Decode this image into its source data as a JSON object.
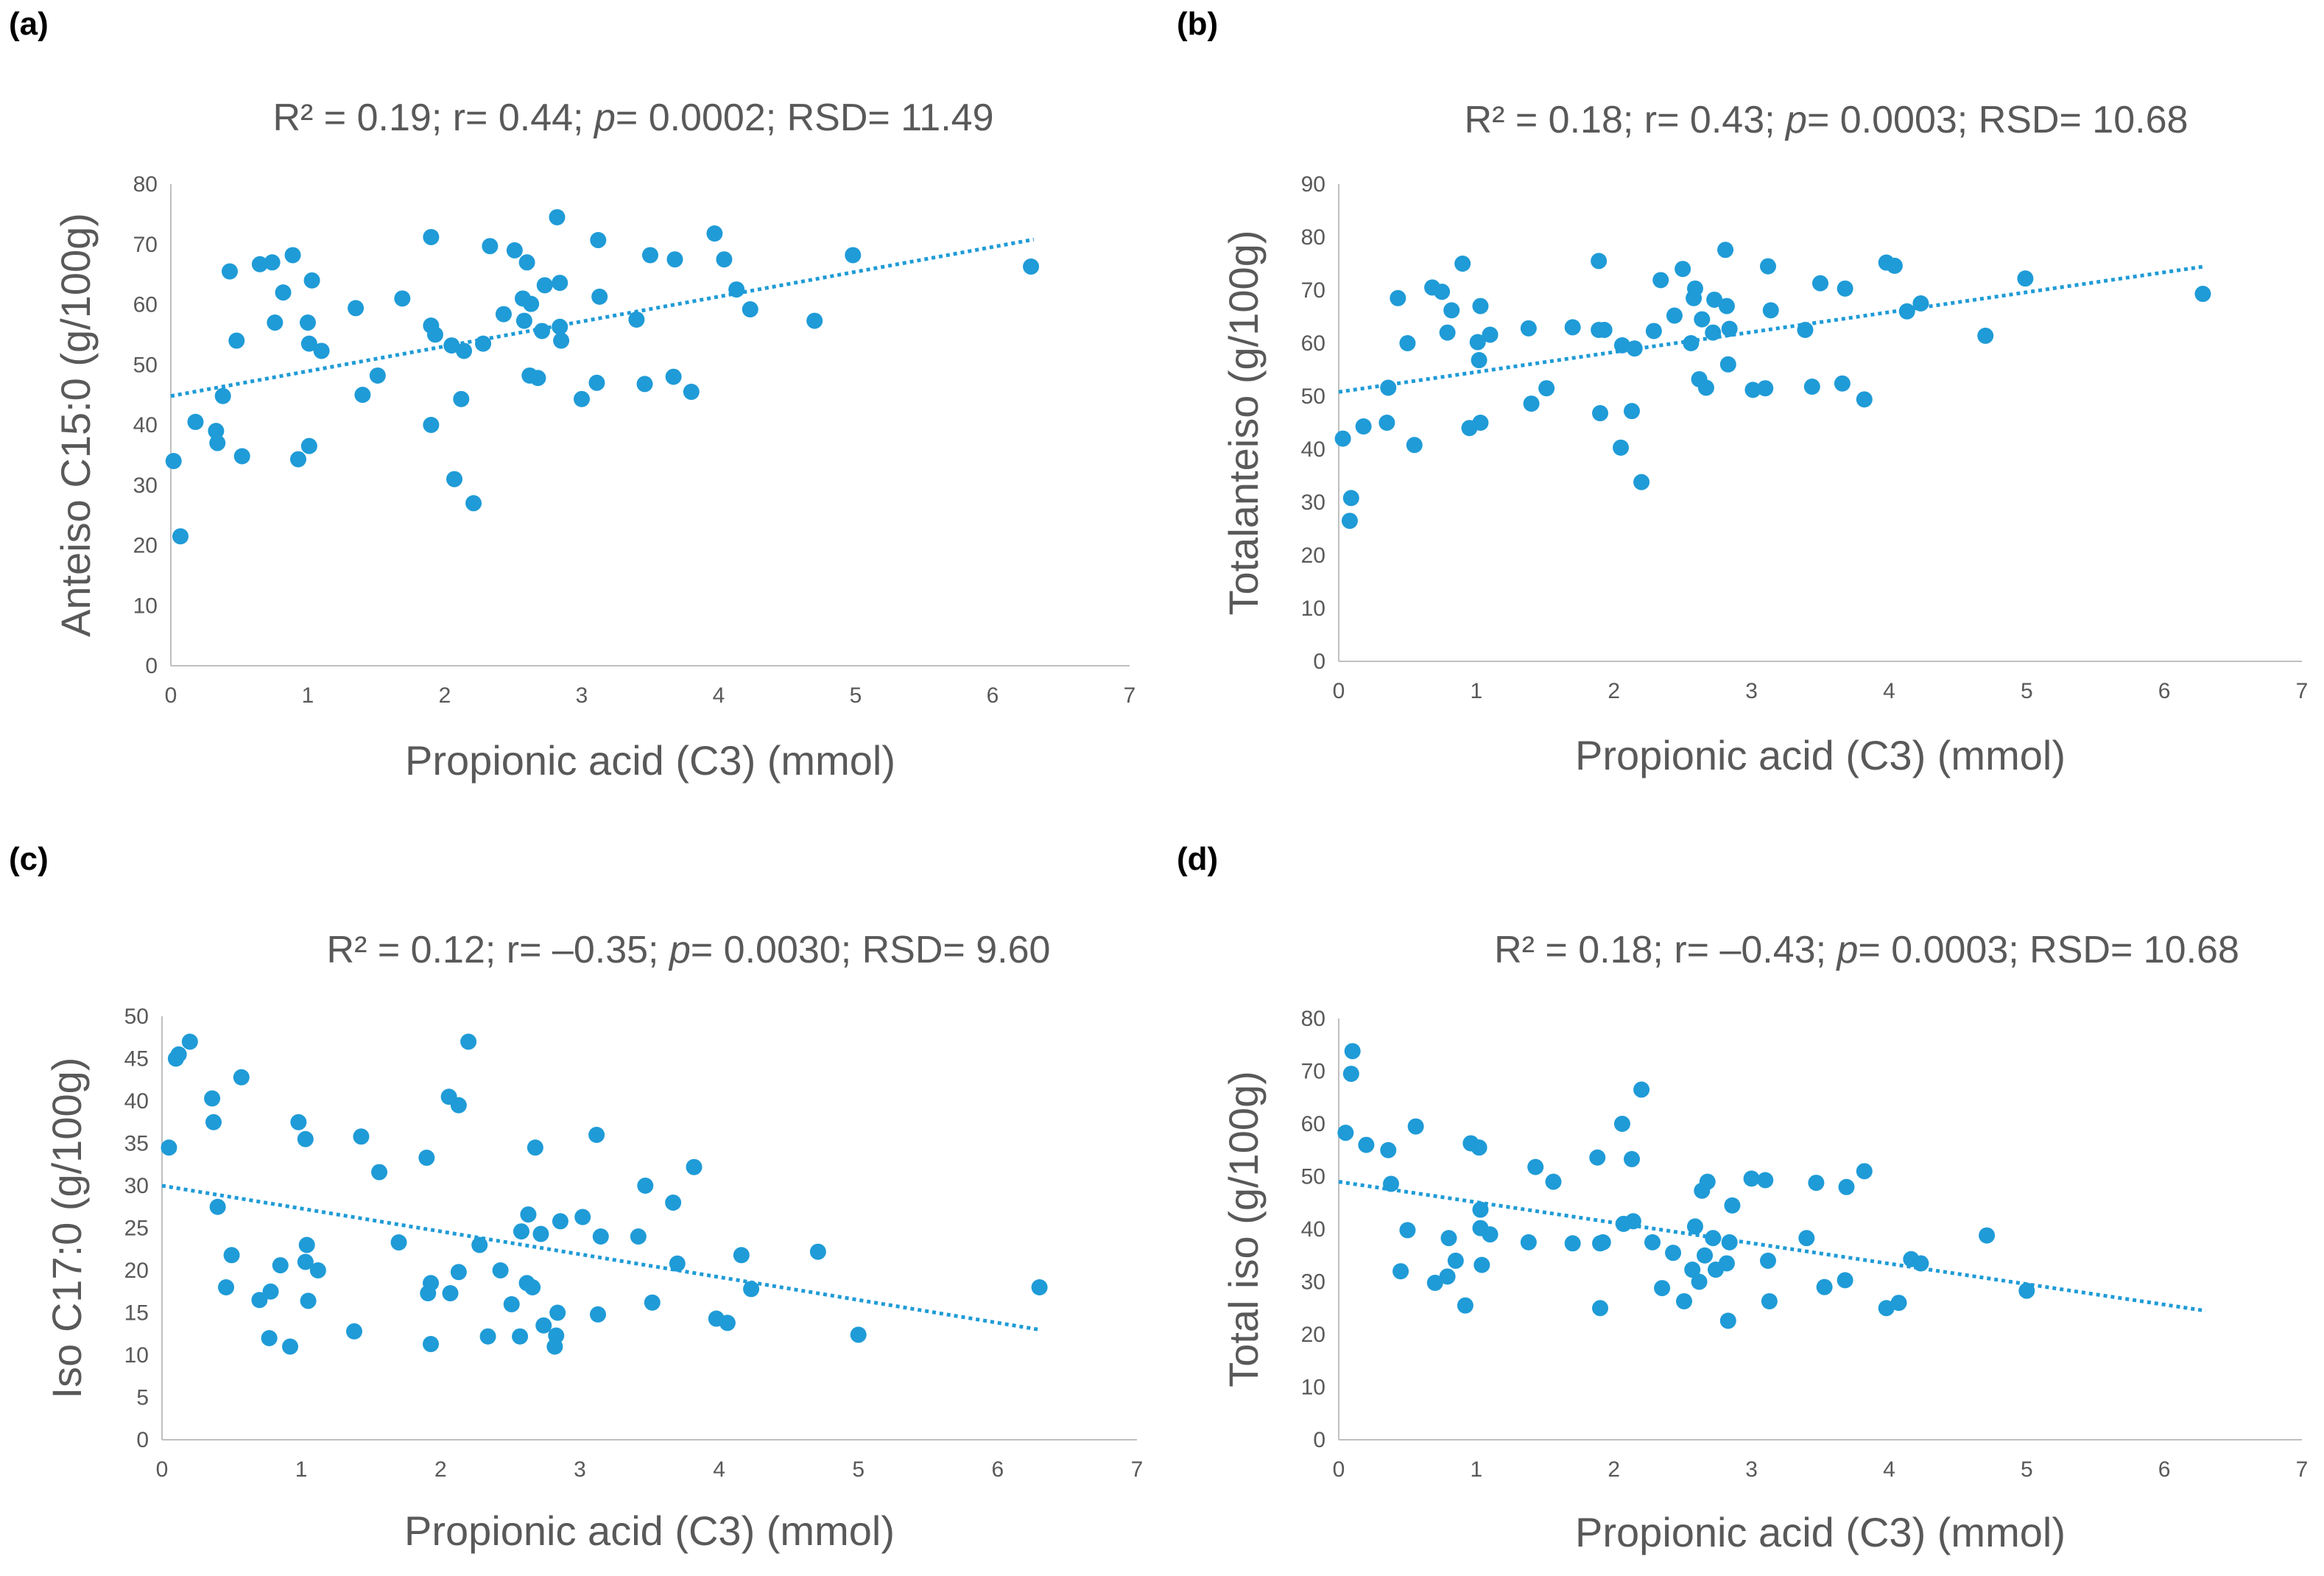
{
  "chart_data": [
    {
      "panel": "(a)",
      "type": "scatter",
      "title": {
        "r2": "R² = 0.19; r= 0.44; ",
        "p_label": "p",
        "rest": "= 0.0002; RSD= 11.49"
      },
      "xlabel": "Propionic acid (C3) (mmol)",
      "ylabel": "Anteiso C15:0 (g/100g)",
      "xlim": [
        0,
        7
      ],
      "ylim": [
        0,
        80
      ],
      "xticks": [
        0,
        1,
        2,
        3,
        4,
        5,
        6,
        7
      ],
      "yticks": [
        0,
        10,
        20,
        30,
        40,
        50,
        60,
        70,
        80
      ],
      "trend": {
        "x": [
          0,
          6.3
        ],
        "y": [
          44.8,
          70.8
        ]
      },
      "points": [
        [
          0.02,
          34
        ],
        [
          0.07,
          21.5
        ],
        [
          0.18,
          40.5
        ],
        [
          0.33,
          39
        ],
        [
          0.34,
          37
        ],
        [
          0.38,
          44.8
        ],
        [
          0.43,
          65.5
        ],
        [
          0.48,
          54
        ],
        [
          0.52,
          34.8
        ],
        [
          0.65,
          66.7
        ],
        [
          0.74,
          67
        ],
        [
          0.76,
          57
        ],
        [
          0.82,
          62
        ],
        [
          0.89,
          68.2
        ],
        [
          0.93,
          34.3
        ],
        [
          1.0,
          57
        ],
        [
          1.01,
          53.5
        ],
        [
          1.01,
          36.5
        ],
        [
          1.03,
          64
        ],
        [
          1.1,
          52.3
        ],
        [
          1.35,
          59.4
        ],
        [
          1.4,
          45
        ],
        [
          1.51,
          48.2
        ],
        [
          1.69,
          61
        ],
        [
          1.9,
          71.2
        ],
        [
          1.9,
          56.5
        ],
        [
          1.9,
          40
        ],
        [
          1.93,
          55
        ],
        [
          2.05,
          53.2
        ],
        [
          2.07,
          31
        ],
        [
          2.12,
          44.3
        ],
        [
          2.14,
          52.3
        ],
        [
          2.21,
          27
        ],
        [
          2.28,
          53.5
        ],
        [
          2.33,
          69.7
        ],
        [
          2.43,
          58.4
        ],
        [
          2.51,
          69
        ],
        [
          2.57,
          61
        ],
        [
          2.58,
          57.3
        ],
        [
          2.6,
          67
        ],
        [
          2.62,
          48.2
        ],
        [
          2.63,
          60.1
        ],
        [
          2.68,
          47.8
        ],
        [
          2.71,
          55.6
        ],
        [
          2.73,
          63.2
        ],
        [
          2.82,
          74.5
        ],
        [
          2.84,
          63.6
        ],
        [
          2.84,
          56.3
        ],
        [
          2.85,
          54
        ],
        [
          3.0,
          44.3
        ],
        [
          3.11,
          47
        ],
        [
          3.12,
          70.7
        ],
        [
          3.13,
          61.3
        ],
        [
          3.4,
          57.5
        ],
        [
          3.46,
          46.8
        ],
        [
          3.5,
          68.2
        ],
        [
          3.67,
          48
        ],
        [
          3.68,
          67.5
        ],
        [
          3.8,
          45.5
        ],
        [
          3.97,
          71.8
        ],
        [
          4.04,
          67.5
        ],
        [
          4.13,
          62.5
        ],
        [
          4.23,
          59.2
        ],
        [
          4.7,
          57.3
        ],
        [
          4.98,
          68.2
        ],
        [
          6.28,
          66.3
        ]
      ]
    },
    {
      "panel": "(b)",
      "type": "scatter",
      "title": {
        "r2": "R² = 0.18; r= 0.43; ",
        "p_label": "p",
        "rest": "= 0.0003; RSD= 10.68"
      },
      "xlabel": "Propionic acid (C3) (mmol)",
      "ylabel": "Totalanteiso (g/100g)",
      "xlim": [
        0,
        7
      ],
      "ylim": [
        0,
        90
      ],
      "xticks": [
        0,
        1,
        2,
        3,
        4,
        5,
        6,
        7
      ],
      "yticks": [
        0,
        10,
        20,
        30,
        40,
        50,
        60,
        70,
        80,
        90
      ],
      "trend": {
        "x": [
          0,
          6.3
        ],
        "y": [
          50.8,
          74.5
        ]
      },
      "points": [
        [
          0.03,
          42
        ],
        [
          0.08,
          26.5
        ],
        [
          0.09,
          30.8
        ],
        [
          0.18,
          44.3
        ],
        [
          0.35,
          45
        ],
        [
          0.36,
          51.6
        ],
        [
          0.43,
          68.5
        ],
        [
          0.5,
          60
        ],
        [
          0.55,
          40.8
        ],
        [
          0.68,
          70.5
        ],
        [
          0.75,
          69.7
        ],
        [
          0.79,
          62
        ],
        [
          0.82,
          66.2
        ],
        [
          0.9,
          75
        ],
        [
          0.95,
          44
        ],
        [
          1.01,
          60.2
        ],
        [
          1.02,
          56.8
        ],
        [
          1.03,
          45
        ],
        [
          1.03,
          67
        ],
        [
          1.1,
          61.6
        ],
        [
          1.38,
          62.8
        ],
        [
          1.4,
          48.6
        ],
        [
          1.51,
          51.5
        ],
        [
          1.7,
          63
        ],
        [
          1.89,
          75.5
        ],
        [
          1.89,
          62.5
        ],
        [
          1.9,
          46.8
        ],
        [
          1.93,
          62.5
        ],
        [
          2.05,
          40.3
        ],
        [
          2.06,
          59.6
        ],
        [
          2.13,
          47.2
        ],
        [
          2.15,
          59
        ],
        [
          2.2,
          33.8
        ],
        [
          2.29,
          62.3
        ],
        [
          2.34,
          71.9
        ],
        [
          2.44,
          65.2
        ],
        [
          2.5,
          74
        ],
        [
          2.56,
          60
        ],
        [
          2.58,
          68.5
        ],
        [
          2.59,
          70.3
        ],
        [
          2.62,
          53.2
        ],
        [
          2.64,
          64.5
        ],
        [
          2.67,
          51.6
        ],
        [
          2.72,
          62
        ],
        [
          2.73,
          68.2
        ],
        [
          2.81,
          77.6
        ],
        [
          2.82,
          67
        ],
        [
          2.83,
          56
        ],
        [
          2.84,
          62.7
        ],
        [
          3.01,
          51.2
        ],
        [
          3.1,
          51.5
        ],
        [
          3.12,
          74.5
        ],
        [
          3.14,
          66.2
        ],
        [
          3.39,
          62.5
        ],
        [
          3.44,
          51.8
        ],
        [
          3.5,
          71.3
        ],
        [
          3.66,
          52.4
        ],
        [
          3.68,
          70.3
        ],
        [
          3.82,
          49.4
        ],
        [
          3.98,
          75.2
        ],
        [
          4.04,
          74.6
        ],
        [
          4.13,
          66
        ],
        [
          4.23,
          67.5
        ],
        [
          4.7,
          61.4
        ],
        [
          4.99,
          72.2
        ],
        [
          6.28,
          69.3
        ]
      ]
    },
    {
      "panel": "(c)",
      "type": "scatter",
      "title": {
        "r2": "R² = 0.12; r= –0.35; ",
        "p_label": "p",
        "rest": "= 0.0030; RSD= 9.60"
      },
      "xlabel": "Propionic acid (C3) (mmol)",
      "ylabel": "Iso C17:0 (g/100g)",
      "xlim": [
        0,
        7
      ],
      "ylim": [
        0,
        50
      ],
      "xticks": [
        0,
        1,
        2,
        3,
        4,
        5,
        6,
        7
      ],
      "yticks": [
        0,
        5,
        10,
        15,
        20,
        25,
        30,
        35,
        40,
        45,
        50
      ],
      "trend": {
        "x": [
          0,
          6.3
        ],
        "y": [
          30,
          13
        ]
      },
      "points": [
        [
          0.05,
          34.5
        ],
        [
          0.1,
          45
        ],
        [
          0.12,
          45.5
        ],
        [
          0.2,
          47
        ],
        [
          0.36,
          40.3
        ],
        [
          0.37,
          37.5
        ],
        [
          0.4,
          27.5
        ],
        [
          0.46,
          18
        ],
        [
          0.5,
          21.8
        ],
        [
          0.57,
          42.8
        ],
        [
          0.7,
          16.5
        ],
        [
          0.77,
          12
        ],
        [
          0.78,
          17.5
        ],
        [
          0.85,
          20.6
        ],
        [
          0.92,
          11
        ],
        [
          0.98,
          37.5
        ],
        [
          1.03,
          35.5
        ],
        [
          1.03,
          21
        ],
        [
          1.04,
          23
        ],
        [
          1.05,
          16.4
        ],
        [
          1.12,
          20
        ],
        [
          1.38,
          12.8
        ],
        [
          1.43,
          35.8
        ],
        [
          1.56,
          31.6
        ],
        [
          1.7,
          23.3
        ],
        [
          1.9,
          33.3
        ],
        [
          1.91,
          17.3
        ],
        [
          1.93,
          11.3
        ],
        [
          1.93,
          18.5
        ],
        [
          2.06,
          40.5
        ],
        [
          2.07,
          17.3
        ],
        [
          2.13,
          39.5
        ],
        [
          2.13,
          19.8
        ],
        [
          2.2,
          47
        ],
        [
          2.28,
          23
        ],
        [
          2.34,
          12.2
        ],
        [
          2.43,
          20
        ],
        [
          2.51,
          16
        ],
        [
          2.57,
          12.2
        ],
        [
          2.58,
          24.6
        ],
        [
          2.62,
          18.5
        ],
        [
          2.63,
          26.6
        ],
        [
          2.66,
          18
        ],
        [
          2.68,
          34.5
        ],
        [
          2.72,
          24.3
        ],
        [
          2.74,
          13.5
        ],
        [
          2.82,
          11
        ],
        [
          2.83,
          12.3
        ],
        [
          2.84,
          15
        ],
        [
          2.86,
          25.8
        ],
        [
          3.02,
          26.3
        ],
        [
          3.12,
          36
        ],
        [
          3.13,
          14.8
        ],
        [
          3.15,
          24
        ],
        [
          3.42,
          24
        ],
        [
          3.47,
          30
        ],
        [
          3.52,
          16.2
        ],
        [
          3.67,
          28
        ],
        [
          3.7,
          20.8
        ],
        [
          3.82,
          32.2
        ],
        [
          3.98,
          14.3
        ],
        [
          4.06,
          13.8
        ],
        [
          4.16,
          21.8
        ],
        [
          4.23,
          17.8
        ],
        [
          4.71,
          22.2
        ],
        [
          5.0,
          12.4
        ],
        [
          6.3,
          18
        ]
      ]
    },
    {
      "panel": "(d)",
      "type": "scatter",
      "title": {
        "r2": "R² = 0.18; r= –0.43; ",
        "p_label": "p",
        "rest": "= 0.0003; RSD= 10.68"
      },
      "xlabel": "Propionic acid (C3) (mmol)",
      "ylabel": "Total iso (g/100g)",
      "xlim": [
        0,
        7
      ],
      "ylim": [
        0,
        80
      ],
      "xticks": [
        0,
        1,
        2,
        3,
        4,
        5,
        6,
        7
      ],
      "yticks": [
        0,
        10,
        20,
        30,
        40,
        50,
        60,
        70,
        80
      ],
      "trend": {
        "x": [
          0,
          6.3
        ],
        "y": [
          49,
          24.5
        ]
      },
      "points": [
        [
          0.05,
          58.3
        ],
        [
          0.09,
          69.5
        ],
        [
          0.1,
          73.8
        ],
        [
          0.2,
          56
        ],
        [
          0.36,
          55
        ],
        [
          0.38,
          48.6
        ],
        [
          0.45,
          32
        ],
        [
          0.5,
          39.8
        ],
        [
          0.56,
          59.5
        ],
        [
          0.7,
          29.8
        ],
        [
          0.79,
          31
        ],
        [
          0.8,
          38.3
        ],
        [
          0.85,
          34
        ],
        [
          0.92,
          25.5
        ],
        [
          0.96,
          56.3
        ],
        [
          1.02,
          55.5
        ],
        [
          1.03,
          40.2
        ],
        [
          1.03,
          43.7
        ],
        [
          1.04,
          33.2
        ],
        [
          1.1,
          39
        ],
        [
          1.38,
          37.5
        ],
        [
          1.43,
          51.8
        ],
        [
          1.56,
          49
        ],
        [
          1.7,
          37.3
        ],
        [
          1.88,
          53.6
        ],
        [
          1.9,
          37.3
        ],
        [
          1.9,
          25
        ],
        [
          1.92,
          37.5
        ],
        [
          2.06,
          60
        ],
        [
          2.07,
          41
        ],
        [
          2.13,
          53.3
        ],
        [
          2.14,
          41.5
        ],
        [
          2.2,
          66.5
        ],
        [
          2.28,
          37.5
        ],
        [
          2.35,
          28.8
        ],
        [
          2.43,
          35.5
        ],
        [
          2.51,
          26.3
        ],
        [
          2.57,
          32.3
        ],
        [
          2.59,
          40.5
        ],
        [
          2.62,
          30
        ],
        [
          2.64,
          47.3
        ],
        [
          2.66,
          35
        ],
        [
          2.68,
          49
        ],
        [
          2.72,
          38.3
        ],
        [
          2.74,
          32.3
        ],
        [
          2.82,
          33.5
        ],
        [
          2.83,
          22.6
        ],
        [
          2.84,
          37.5
        ],
        [
          2.86,
          44.5
        ],
        [
          3.0,
          49.6
        ],
        [
          3.1,
          49.3
        ],
        [
          3.12,
          34
        ],
        [
          3.13,
          26.3
        ],
        [
          3.4,
          38.3
        ],
        [
          3.47,
          48.8
        ],
        [
          3.53,
          29
        ],
        [
          3.68,
          30.3
        ],
        [
          3.69,
          48
        ],
        [
          3.82,
          51
        ],
        [
          3.98,
          25
        ],
        [
          4.07,
          26
        ],
        [
          4.16,
          34.3
        ],
        [
          4.23,
          33.5
        ],
        [
          4.71,
          38.8
        ],
        [
          5.0,
          28.3
        ]
      ]
    }
  ]
}
